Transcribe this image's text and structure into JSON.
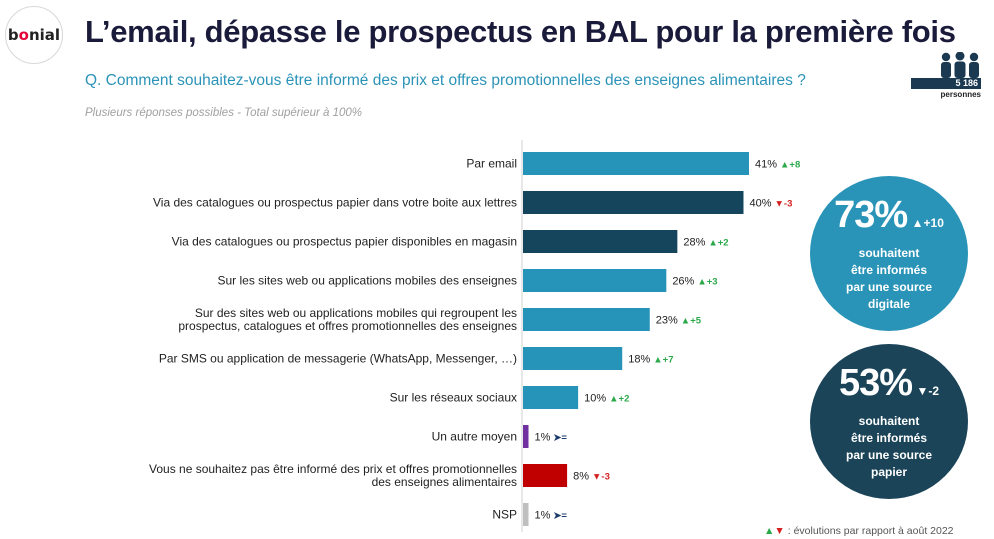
{
  "brand": {
    "logo_text_pre": "b",
    "logo_text_o": "o",
    "logo_text_post": "nial"
  },
  "title": "L’email, dépasse le prospectus en BAL pour la première fois",
  "question": "Q. Comment souhaitez-vous être informé des prix et offres promotionnelles des enseignes alimentaires ?",
  "note": "Plusieurs réponses possibles - Total supérieur à 100%",
  "sample": {
    "count": "5 186",
    "unit": "personnes"
  },
  "colors": {
    "teal": "#2694b8",
    "navy": "#15445d",
    "purple": "#7030a0",
    "red": "#c00000",
    "grey": "#bfbfbf",
    "up": "#2aa84a",
    "down": "#d42020",
    "same": "#1b3a6b"
  },
  "chart_data": {
    "type": "bar",
    "orientation": "horizontal",
    "categories": [
      "Par email",
      "Via des catalogues ou prospectus papier dans votre boite aux lettres",
      "Via des catalogues ou prospectus papier disponibles en magasin",
      "Sur les sites web ou applications mobiles des enseignes",
      "Sur des sites web ou applications mobiles qui regroupent les\nprospectus, catalogues et offres promotionnelles des enseignes",
      "Par SMS ou application de messagerie (WhatsApp, Messenger, …)",
      "Sur les réseaux sociaux",
      "Un autre moyen",
      "Vous ne souhaitez pas être informé des prix et offres promotionnelles\ndes enseignes alimentaires",
      "NSP"
    ],
    "values": [
      41,
      40,
      28,
      26,
      23,
      18,
      10,
      1,
      8,
      1
    ],
    "value_labels": [
      "41%",
      "40%",
      "28%",
      "26%",
      "23%",
      "18%",
      "10%",
      "1%",
      "8%",
      "1%"
    ],
    "bar_colors": [
      "teal",
      "navy",
      "navy",
      "teal",
      "teal",
      "teal",
      "teal",
      "purple",
      "red",
      "grey"
    ],
    "changes": [
      {
        "dir": "up",
        "text": "+8"
      },
      {
        "dir": "down",
        "text": "-3"
      },
      {
        "dir": "up",
        "text": "+2"
      },
      {
        "dir": "up",
        "text": "+3"
      },
      {
        "dir": "up",
        "text": "+5"
      },
      {
        "dir": "up",
        "text": "+7"
      },
      {
        "dir": "up",
        "text": "+2"
      },
      {
        "dir": "same",
        "text": "="
      },
      {
        "dir": "down",
        "text": "-3"
      },
      {
        "dir": "same",
        "text": "="
      }
    ],
    "xlim": [
      0,
      45
    ],
    "grid": false,
    "legend": "none"
  },
  "callouts": [
    {
      "value": "73%",
      "change_dir": "up",
      "change": "+10",
      "line1": "souhaitent",
      "line2": "être informés",
      "line3": "par une source",
      "line4": "digitale"
    },
    {
      "value": "53%",
      "change_dir": "down",
      "change": "-2",
      "line1": "souhaitent",
      "line2": "être informés",
      "line3": "par une source",
      "line4": "papier"
    }
  ],
  "footer": ": évolutions par rapport à août 2022"
}
